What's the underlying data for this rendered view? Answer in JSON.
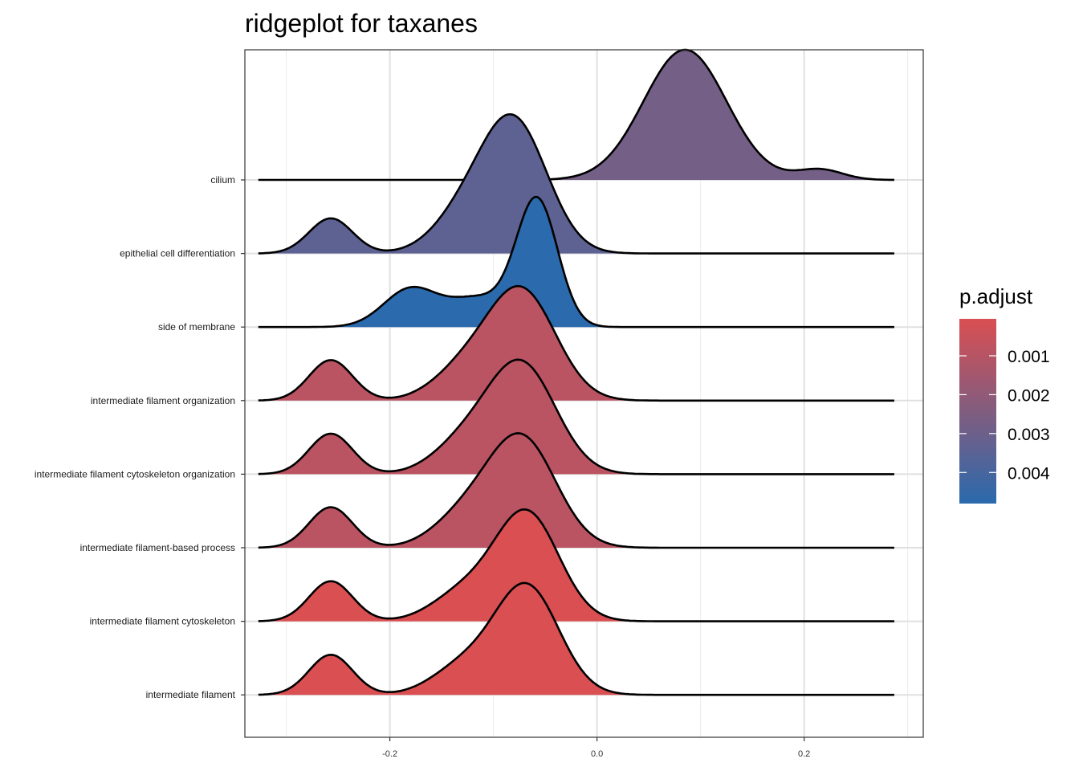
{
  "chart_data": {
    "type": "ridgeline",
    "title": "ridgeplot for taxanes",
    "xlabel": "",
    "ylabel": "",
    "xlim": [
      -0.34,
      0.315
    ],
    "x_ticks": [
      -0.2,
      0.0,
      0.2
    ],
    "x_tick_labels": [
      "-0.2",
      "0.0",
      "0.2"
    ],
    "x_range_curves": [
      -0.327,
      0.287
    ],
    "grid": true,
    "legend": {
      "title": "p.adjust",
      "position": "right",
      "min": 5e-05,
      "max": 0.0048,
      "ticks": [
        0.001,
        0.002,
        0.003,
        0.004
      ],
      "tick_labels": [
        "0.001",
        "0.002",
        "0.003",
        "0.004"
      ],
      "color_low": "#d94f52",
      "color_high": "#2a6aad"
    },
    "series": [
      {
        "name": "cilium",
        "p_adjust": 0.0028,
        "peak": 1.0,
        "components": [
          {
            "mu": 0.085,
            "sd": 0.04,
            "w": 1.0
          },
          {
            "mu": 0.215,
            "sd": 0.022,
            "w": 0.08
          }
        ]
      },
      {
        "name": "epithelial cell differentiation",
        "p_adjust": 0.0034,
        "peak": 1.07,
        "components": [
          {
            "mu": -0.257,
            "sd": 0.021,
            "w": 0.27
          },
          {
            "mu": -0.08,
            "sd": 0.032,
            "w": 1.0
          },
          {
            "mu": -0.13,
            "sd": 0.03,
            "w": 0.25
          }
        ]
      },
      {
        "name": "side of membrane",
        "p_adjust": 0.0048,
        "peak": 1.0,
        "components": [
          {
            "mu": -0.058,
            "sd": 0.02,
            "w": 1.0
          },
          {
            "mu": -0.18,
            "sd": 0.026,
            "w": 0.3
          },
          {
            "mu": -0.115,
            "sd": 0.028,
            "w": 0.22
          }
        ]
      },
      {
        "name": "intermediate filament organization",
        "p_adjust": 0.0009,
        "peak": 0.88,
        "components": [
          {
            "mu": -0.257,
            "sd": 0.021,
            "w": 0.37
          },
          {
            "mu": -0.073,
            "sd": 0.033,
            "w": 1.0
          },
          {
            "mu": -0.13,
            "sd": 0.03,
            "w": 0.25
          }
        ]
      },
      {
        "name": "intermediate filament cytoskeleton organization",
        "p_adjust": 0.0009,
        "peak": 0.88,
        "components": [
          {
            "mu": -0.257,
            "sd": 0.021,
            "w": 0.37
          },
          {
            "mu": -0.073,
            "sd": 0.033,
            "w": 1.0
          },
          {
            "mu": -0.13,
            "sd": 0.03,
            "w": 0.25
          }
        ]
      },
      {
        "name": "intermediate filament-based process",
        "p_adjust": 0.0009,
        "peak": 0.88,
        "components": [
          {
            "mu": -0.257,
            "sd": 0.021,
            "w": 0.37
          },
          {
            "mu": -0.073,
            "sd": 0.033,
            "w": 1.0
          },
          {
            "mu": -0.13,
            "sd": 0.03,
            "w": 0.25
          }
        ]
      },
      {
        "name": "intermediate filament cytoskeleton",
        "p_adjust": 5e-05,
        "peak": 0.86,
        "components": [
          {
            "mu": -0.257,
            "sd": 0.021,
            "w": 0.37
          },
          {
            "mu": -0.068,
            "sd": 0.031,
            "w": 1.0
          },
          {
            "mu": -0.13,
            "sd": 0.03,
            "w": 0.25
          }
        ]
      },
      {
        "name": "intermediate filament",
        "p_adjust": 5e-05,
        "peak": 0.86,
        "components": [
          {
            "mu": -0.257,
            "sd": 0.021,
            "w": 0.37
          },
          {
            "mu": -0.068,
            "sd": 0.031,
            "w": 1.0
          },
          {
            "mu": -0.13,
            "sd": 0.03,
            "w": 0.25
          }
        ]
      }
    ]
  }
}
